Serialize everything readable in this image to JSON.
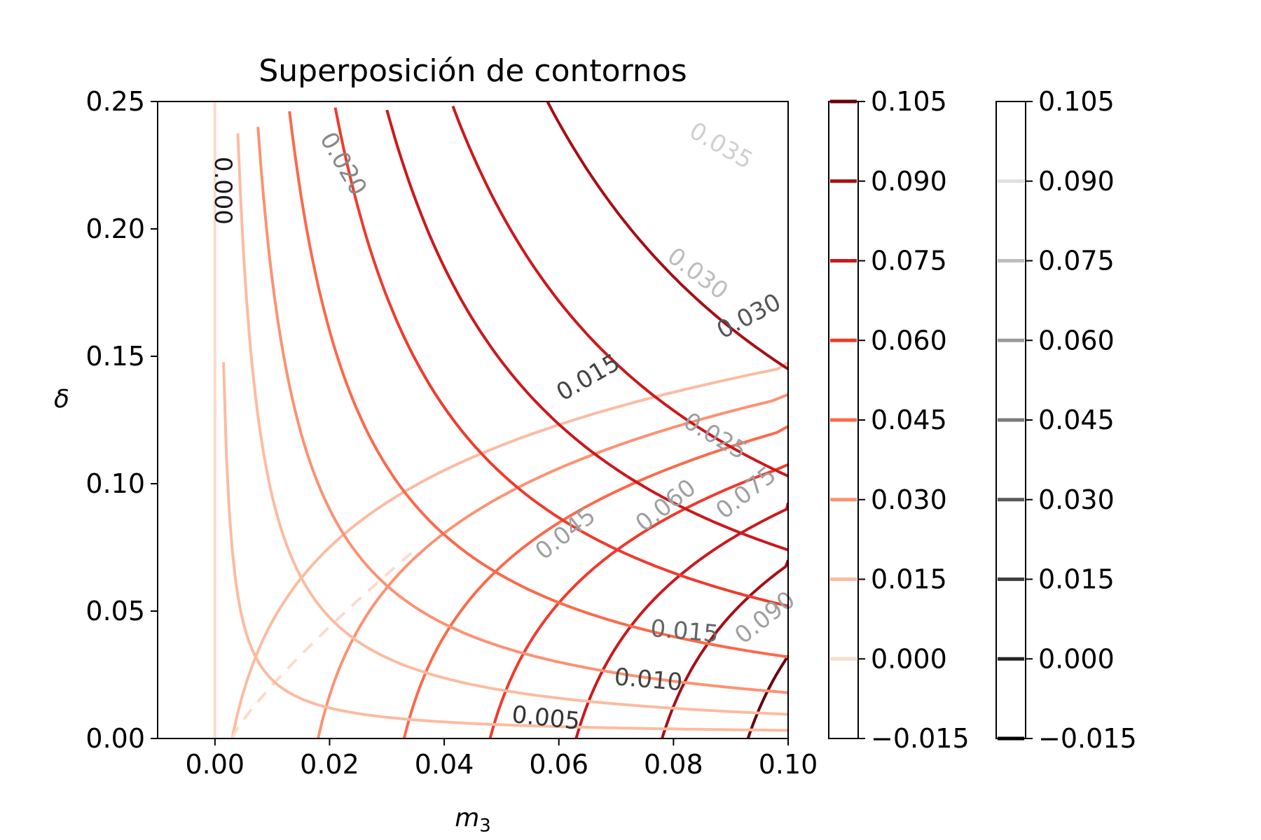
{
  "chart_data": {
    "type": "contour",
    "title": "Superposición de contornos",
    "xlabel": "m",
    "xlabel_sub": "3",
    "ylabel": "δ",
    "xlim": [
      -0.01,
      0.1
    ],
    "ylim": [
      0,
      0.25
    ],
    "xticks": [
      "0.00",
      "0.02",
      "0.04",
      "0.06",
      "0.08",
      "0.10"
    ],
    "yticks": [
      "0.00",
      "0.05",
      "0.10",
      "0.15",
      "0.20",
      "0.25"
    ],
    "grid": false,
    "filled_set": {
      "name": "Reds",
      "levels": [
        0.0,
        0.015,
        0.03,
        0.045,
        0.06,
        0.075,
        0.09,
        0.105
      ],
      "colorbar_ticks": [
        "0.105",
        "0.090",
        "0.075",
        "0.060",
        "0.045",
        "0.030",
        "0.015",
        "0.000",
        "−0.015"
      ],
      "colors": [
        "#fcdbcb",
        "#fcbba1",
        "#fc9272",
        "#fb6a4a",
        "#ef3b2c",
        "#cb181d",
        "#a50f15",
        "#67000d"
      ],
      "x_intercepts_at_delta_0": [
        0.0,
        0.003,
        0.018,
        0.033,
        0.048,
        0.063,
        0.078,
        0.093
      ],
      "labels": [
        {
          "text": "0.000",
          "x": 0.0,
          "y": 0.215
        },
        {
          "text": "0.045",
          "x": 0.062,
          "y": 0.078
        },
        {
          "text": "0.060",
          "x": 0.0795,
          "y": 0.089
        },
        {
          "text": "0.075",
          "x": 0.0935,
          "y": 0.094
        },
        {
          "text": "0.090",
          "x": 0.0968,
          "y": 0.045
        }
      ]
    },
    "line_set": {
      "name": "Greys",
      "levels": [
        0.005,
        0.01,
        0.015,
        0.02,
        0.025,
        0.03,
        0.035
      ],
      "colorbar_ticks": [
        "0.105",
        "0.090",
        "0.075",
        "0.060",
        "0.045",
        "0.030",
        "0.015",
        "0.000",
        "−0.015"
      ],
      "colors": [
        "#252525",
        "#404040",
        "#5a5a5a",
        "#7a7a7a",
        "#9a9a9a",
        "#bdbdbd",
        "#e0e0e0"
      ],
      "labels": [
        {
          "text": "0.005",
          "x": 0.0576,
          "y": 0.005
        },
        {
          "text": "0.010",
          "x": 0.0755,
          "y": 0.02
        },
        {
          "text": "0.015",
          "x": 0.0818,
          "y": 0.039
        },
        {
          "text": "0.015",
          "x": 0.0658,
          "y": 0.139
        },
        {
          "text": "0.020",
          "x": 0.0212,
          "y": 0.224
        },
        {
          "text": "0.025",
          "x": 0.0866,
          "y": 0.116
        },
        {
          "text": "0.030",
          "x": 0.0834,
          "y": 0.18
        },
        {
          "text": "0.030",
          "x": 0.0938,
          "y": 0.163
        },
        {
          "text": "0.035",
          "x": 0.0876,
          "y": 0.23
        }
      ]
    }
  }
}
